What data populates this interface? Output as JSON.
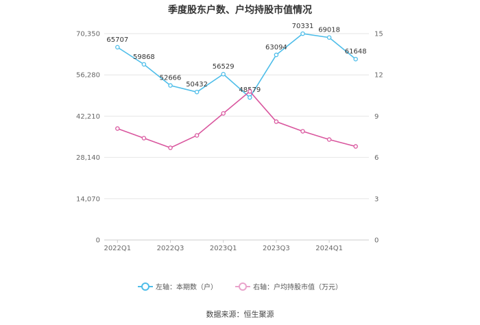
{
  "chart_data": {
    "type": "line",
    "title": "季度股东户数、户均持股市值情况",
    "x": [
      "2022Q1",
      "2022Q2",
      "2022Q3",
      "2022Q4",
      "2023Q1",
      "2023Q2",
      "2023Q3",
      "2023Q4",
      "2024Q1",
      "2024Q2"
    ],
    "x_tick_labels": [
      "2022Q1",
      "2022Q3",
      "2023Q1",
      "2023Q3",
      "2024Q1"
    ],
    "y_left": {
      "ticks": [
        "0",
        "14,070",
        "28,140",
        "42,210",
        "56,280",
        "70,350"
      ],
      "ylim": [
        0,
        70350
      ]
    },
    "y_right": {
      "ticks": [
        "0",
        "3",
        "6",
        "9",
        "12",
        "15"
      ],
      "ylim": [
        0,
        15
      ]
    },
    "series": [
      {
        "name": "左轴：本期数（户）",
        "axis": "left",
        "color": "#4dbde9",
        "values": [
          65707,
          59868,
          52666,
          50432,
          56529,
          48579,
          63094,
          70331,
          69018,
          61648
        ],
        "labels": [
          "65707",
          "59868",
          "52666",
          "50432",
          "56529",
          "48579",
          "63094",
          "70331",
          "69018",
          "61648"
        ]
      },
      {
        "name": "右轴：户均持股市值（万元）",
        "axis": "right",
        "color": "#d9569e",
        "values": [
          8.1,
          7.4,
          6.7,
          7.6,
          9.2,
          10.8,
          8.6,
          7.9,
          7.3,
          6.8
        ]
      }
    ],
    "grid": true,
    "legend_position": "bottom"
  },
  "source": "数据来源：恒生聚源"
}
